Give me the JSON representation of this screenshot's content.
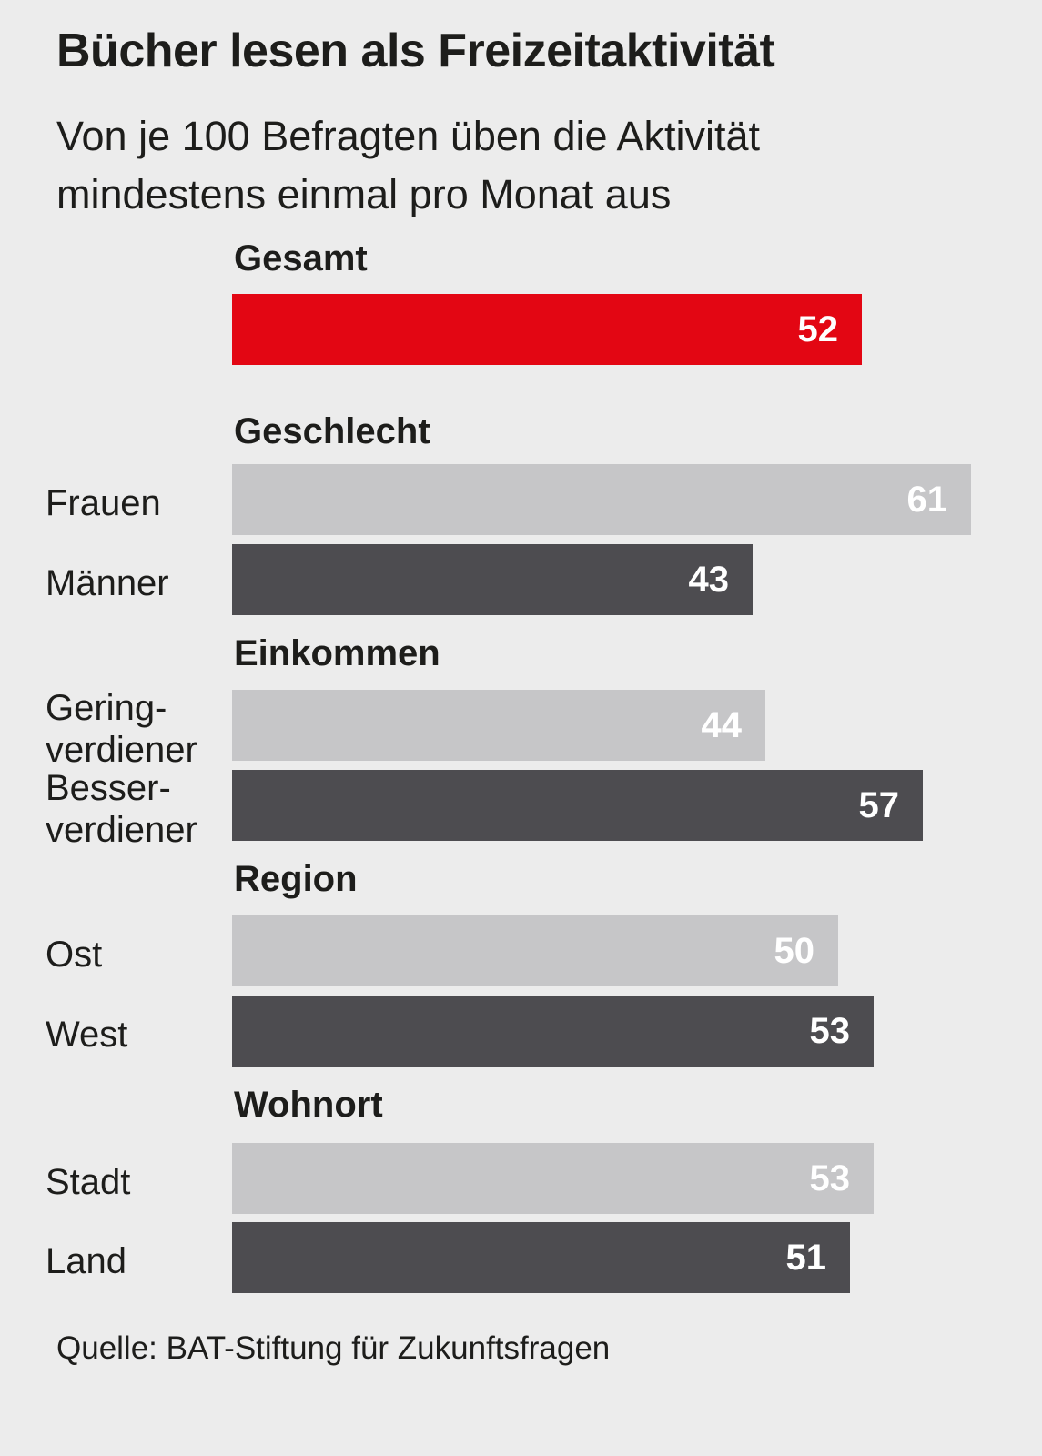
{
  "chart_data": {
    "type": "bar",
    "orientation": "horizontal",
    "title": "Bücher lesen als Freizeitaktivität",
    "subtitle_lines": [
      "Von je 100 Befragten üben die Aktivität",
      "mindestens einmal pro Monat aus"
    ],
    "xlim": [
      0,
      61
    ],
    "grid": false,
    "colors": {
      "total": "#e30613",
      "light": "#c6c6c8",
      "dark": "#4d4c50"
    },
    "groups": [
      {
        "heading": "Gesamt",
        "bars": [
          {
            "label": "",
            "value": 52,
            "tone": "total"
          }
        ]
      },
      {
        "heading": "Geschlecht",
        "bars": [
          {
            "label": "Frauen",
            "value": 61,
            "tone": "light"
          },
          {
            "label": "Männer",
            "value": 43,
            "tone": "dark"
          }
        ]
      },
      {
        "heading": "Einkommen",
        "bars": [
          {
            "label": "Gering-\nverdiener",
            "value": 44,
            "tone": "light"
          },
          {
            "label": "Besser-\nverdiener",
            "value": 57,
            "tone": "dark"
          }
        ]
      },
      {
        "heading": "Region",
        "bars": [
          {
            "label": "Ost",
            "value": 50,
            "tone": "light"
          },
          {
            "label": "West",
            "value": 53,
            "tone": "dark"
          }
        ]
      },
      {
        "heading": "Wohnort",
        "bars": [
          {
            "label": "Stadt",
            "value": 53,
            "tone": "light"
          },
          {
            "label": "Land",
            "value": 51,
            "tone": "dark"
          }
        ]
      }
    ],
    "source": "Quelle: BAT-Stiftung für Zukunftsfragen"
  }
}
